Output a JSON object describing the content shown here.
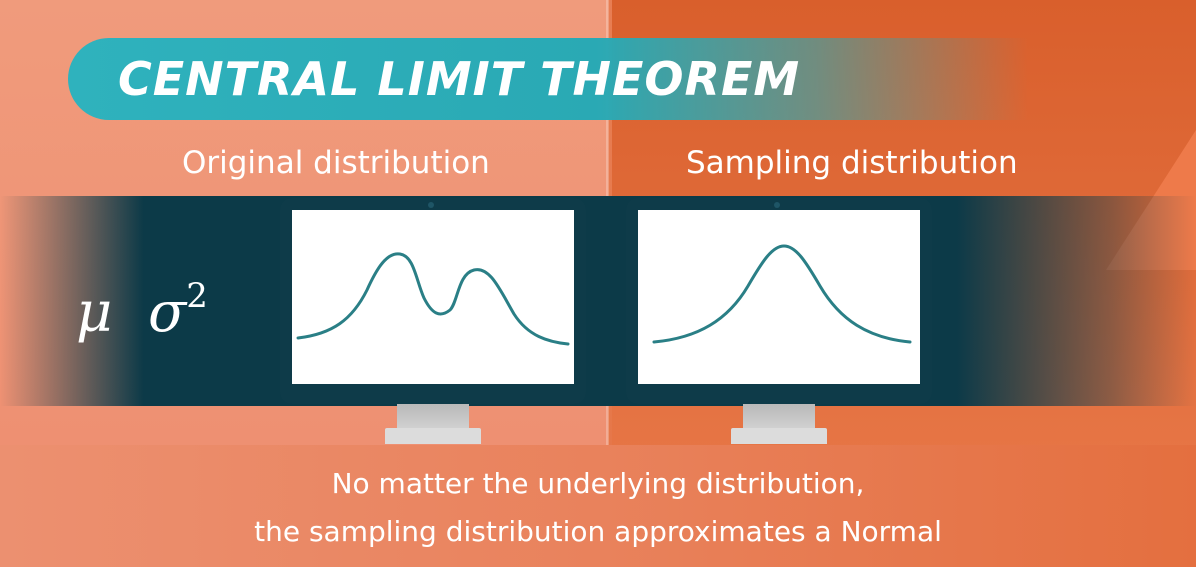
{
  "title": "CENTRAL LIMIT THEOREM",
  "panels": {
    "left_label": "Original distribution",
    "right_label": "Sampling distribution"
  },
  "symbols": {
    "mu": "μ",
    "sigma": "σ",
    "exponent": "2"
  },
  "caption": {
    "line1": "No matter the underlying distribution,",
    "line2": "the sampling distribution approximates a Normal"
  },
  "colors": {
    "teal_banner": "#2fb2bd",
    "dark_band": "#0c3a48",
    "curve": "#2a7f86",
    "orange_bg": "#e3703f"
  },
  "curves": {
    "original": "bimodal",
    "sampling": "normal"
  }
}
